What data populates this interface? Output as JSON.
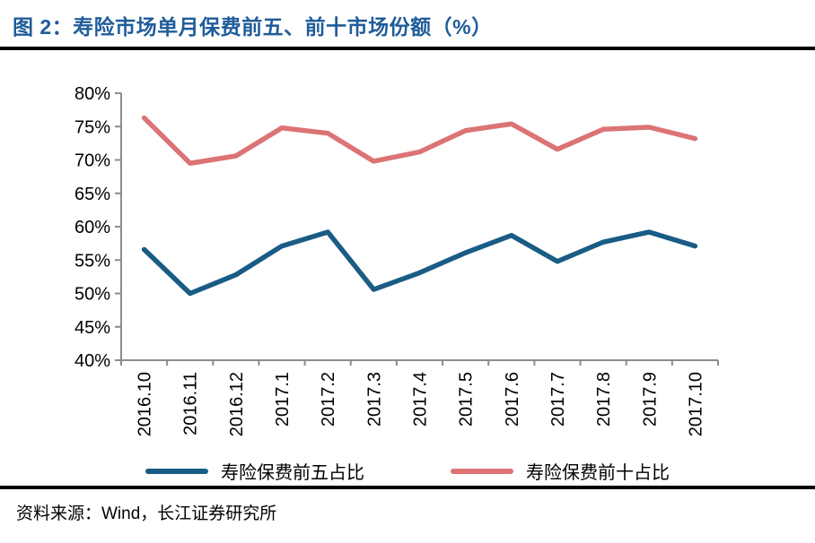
{
  "header": {
    "title": "图 2：寿险市场单月保费前五、前十市场份额（%）",
    "title_color": "#1F5C99"
  },
  "chart_data": {
    "type": "line",
    "title": "图 2：寿险市场单月保费前五、前十市场份额（%）",
    "categories": [
      "2016.10",
      "2016.11",
      "2016.12",
      "2017.1",
      "2017.2",
      "2017.3",
      "2017.4",
      "2017.5",
      "2017.6",
      "2017.7",
      "2017.8",
      "2017.9",
      "2017.10"
    ],
    "series": [
      {
        "name": "寿险保费前五占比",
        "color": "#195C85",
        "values": [
          56.6,
          50.0,
          52.8,
          57.1,
          59.2,
          50.6,
          53.1,
          56.1,
          58.7,
          54.8,
          57.7,
          59.2,
          57.1
        ]
      },
      {
        "name": "寿险保费前十占比",
        "color": "#DC7374",
        "values": [
          76.3,
          69.5,
          70.6,
          74.8,
          74.0,
          69.8,
          71.2,
          74.4,
          75.4,
          71.6,
          74.6,
          74.9,
          73.2
        ]
      }
    ],
    "ylim": [
      40,
      80
    ],
    "y_tick_step": 5,
    "y_tick_labels": [
      "40%",
      "45%",
      "50%",
      "55%",
      "60%",
      "65%",
      "70%",
      "75%",
      "80%"
    ],
    "unit": "%",
    "grid": false,
    "legend_position": "bottom",
    "axis_color": "#8C8C8C",
    "tick_label_color": "#000000"
  },
  "footer": {
    "source": "资料来源：Wind，长江证券研究所"
  }
}
